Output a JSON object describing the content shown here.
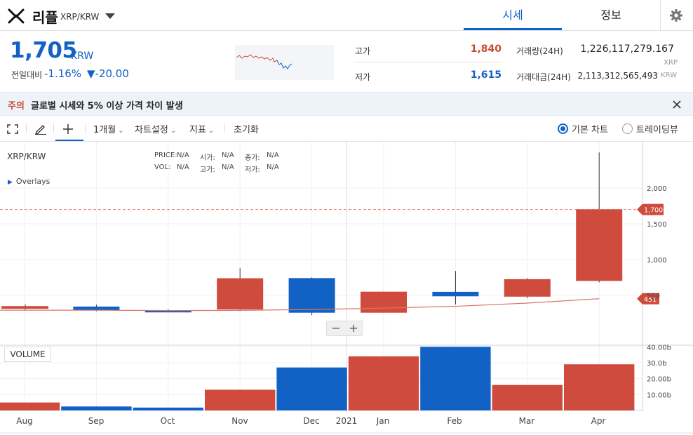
{
  "header": {
    "coin_name": "리플",
    "pair": "XRP/KRW",
    "tabs": [
      "시세",
      "정보"
    ]
  },
  "ticker": {
    "price": "1,705",
    "price_unit": "KRW",
    "prev_label": "전일대비",
    "change_rate": "-1.16%",
    "change_amount": "▼-20.00",
    "high_label": "고가",
    "high": "1,840",
    "low_label": "저가",
    "low": "1,615",
    "volume_label": "거래량(24H)",
    "volume": "1,226,117,279.167",
    "volume_unit": "XRP",
    "amount_label": "거래대금(24H)",
    "amount": "2,113,312,565,493",
    "amount_unit": "KRW"
  },
  "notice": {
    "tag": "주의",
    "text": "글로벌 시세와 5% 이상 가격 차이 발생"
  },
  "toolbar": {
    "period": "1개월",
    "chart_settings": "차트설정",
    "indicators": "지표",
    "reset": "초기화",
    "basic_chart": "기본 차트",
    "tradingview": "트레이딩뷰"
  },
  "legend": {
    "symbol": "XRP/KRW",
    "price_label": "PRICE:",
    "price_val": "N/A",
    "open_label": "시가:",
    "open_val": "N/A",
    "close_label": "종가:",
    "close_val": "N/A",
    "vol_label": "VOL:",
    "vol_val": "N/A",
    "high_label": "고가:",
    "high_val": "N/A",
    "low_label": "저가:",
    "low_val": "N/A",
    "overlays": "Overlays",
    "volume_panel": "VOLUME"
  },
  "colors": {
    "up": "#cf4b3d",
    "down": "#1261c4",
    "accent": "#1261c4",
    "ma_line": "#d9756a"
  },
  "chart_data": {
    "type": "candlestick",
    "interval": "1 month",
    "x_labels": [
      "Aug",
      "Sep",
      "Oct",
      "Nov",
      "Dec",
      "2021",
      "Jan",
      "Feb",
      "Mar",
      "Apr"
    ],
    "candles": [
      {
        "month": "Aug",
        "open": 310,
        "high": 372,
        "low": 286,
        "close": 348,
        "direction": "up"
      },
      {
        "month": "Sep",
        "open": 341,
        "high": 368,
        "low": 276,
        "close": 290,
        "direction": "down"
      },
      {
        "month": "Oct",
        "open": 289,
        "high": 306,
        "low": 268,
        "close": 283,
        "direction": "down"
      },
      {
        "month": "Nov",
        "open": 300,
        "high": 878,
        "low": 280,
        "close": 738,
        "direction": "up"
      },
      {
        "month": "Dec",
        "open": 740,
        "high": 750,
        "low": 220,
        "close": 255,
        "direction": "down"
      },
      {
        "month": "Jan",
        "open": 255,
        "high": 550,
        "low": 255,
        "close": 550,
        "direction": "up"
      },
      {
        "month": "Feb",
        "open": 548,
        "high": 840,
        "low": 370,
        "close": 485,
        "direction": "down"
      },
      {
        "month": "Mar",
        "open": 480,
        "high": 740,
        "low": 460,
        "close": 725,
        "direction": "up"
      },
      {
        "month": "Apr",
        "open": 700,
        "high": 2500,
        "low": 680,
        "close": 1705,
        "direction": "up"
      }
    ],
    "moving_average": [
      290,
      290,
      285,
      288,
      300,
      320,
      345,
      390,
      451
    ],
    "y_ticks": [
      "500",
      "1,000",
      "1,500",
      "2,000"
    ],
    "price_ylim": [
      -200,
      2650
    ],
    "current_price_label": "1,700",
    "ma_label": "451",
    "volume": {
      "values_b": [
        5.0,
        2.5,
        1.8,
        13.0,
        27.0,
        34.0,
        40.0,
        16.0,
        29.0
      ],
      "directions": [
        "up",
        "down",
        "down",
        "up",
        "down",
        "up",
        "down",
        "up",
        "up"
      ],
      "y_ticks": [
        "10.00b",
        "20.00b",
        "30.0b",
        "40.00b"
      ],
      "ylim_b": [
        0,
        41
      ]
    }
  }
}
